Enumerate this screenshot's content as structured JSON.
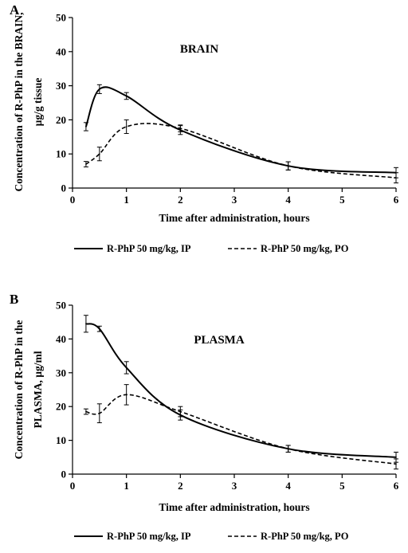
{
  "chart_data": [
    {
      "type": "line",
      "panel_letter": "A",
      "title": "BRAIN",
      "xlabel": "Time after administration, hours",
      "ylabel_lines": [
        "Concentration of R-PhP in the BRAIN,",
        "µg/g tissue"
      ],
      "xlim": [
        0,
        6
      ],
      "ylim": [
        0,
        50
      ],
      "xticks": [
        0,
        1,
        2,
        3,
        4,
        5,
        6
      ],
      "yticks": [
        0,
        10,
        20,
        30,
        40,
        50
      ],
      "grid": false,
      "legend_position": "bottom",
      "series": [
        {
          "name": "R-PhP 50 mg/kg, IP",
          "style": "solid",
          "x": [
            0.25,
            0.5,
            1,
            2,
            4,
            6
          ],
          "y": [
            18,
            29,
            27,
            17,
            6.5,
            4.5
          ],
          "err": [
            1.2,
            1.3,
            1,
            1.3,
            1.2,
            1.5
          ]
        },
        {
          "name": "R-PhP 50 mg/kg, PO",
          "style": "dashed",
          "x": [
            0.25,
            0.5,
            1,
            2,
            4,
            6
          ],
          "y": [
            7,
            10,
            18,
            17.5,
            6.5,
            3
          ],
          "err": [
            0.8,
            2,
            2,
            1,
            1.2,
            1.5
          ]
        }
      ]
    },
    {
      "type": "line",
      "panel_letter": "B",
      "title": "PLASMA",
      "xlabel": "Time after administration, hours",
      "ylabel_lines": [
        "Concentration of R-PhP in the",
        "PLASMA, µg/ml"
      ],
      "xlim": [
        0,
        6
      ],
      "ylim": [
        0,
        50
      ],
      "xticks": [
        0,
        1,
        2,
        3,
        4,
        5,
        6
      ],
      "yticks": [
        0,
        10,
        20,
        30,
        40,
        50
      ],
      "grid": false,
      "legend_position": "bottom",
      "series": [
        {
          "name": "R-PhP 50 mg/kg, IP",
          "style": "solid",
          "x": [
            0.25,
            0.5,
            1,
            2,
            4,
            6
          ],
          "y": [
            44.5,
            43,
            31.5,
            17.5,
            7.5,
            5
          ],
          "err": [
            2.5,
            0.8,
            1.8,
            1.5,
            1,
            1.5
          ]
        },
        {
          "name": "R-PhP 50 mg/kg, PO",
          "style": "dashed",
          "x": [
            0.25,
            0.5,
            1,
            2,
            4,
            6
          ],
          "y": [
            18.5,
            18,
            23.5,
            18.5,
            7.5,
            3
          ],
          "err": [
            0.8,
            2.8,
            3,
            1.5,
            1,
            1.5
          ]
        }
      ]
    }
  ]
}
